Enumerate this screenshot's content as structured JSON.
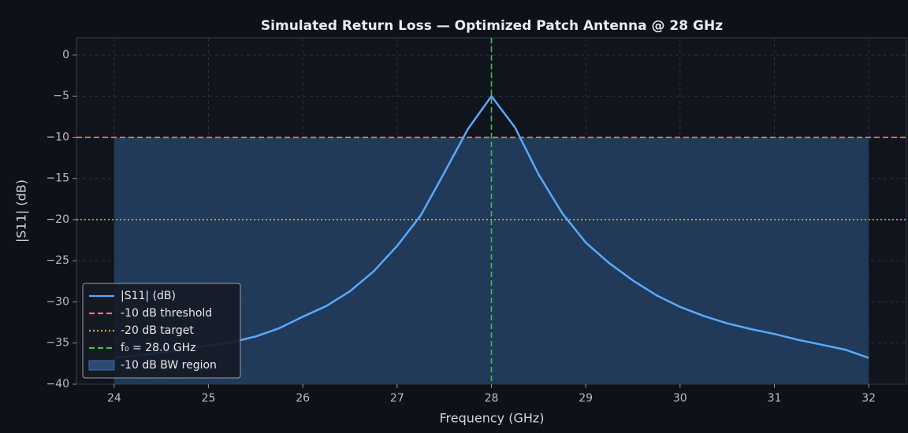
{
  "chart_data": {
    "type": "line",
    "title": "Simulated Return Loss — Optimized Patch Antenna @ 28 GHz",
    "xlabel": "Frequency (GHz)",
    "ylabel": "|S11| (dB)",
    "x": [
      24.0,
      24.25,
      24.5,
      24.75,
      25.0,
      25.25,
      25.5,
      25.75,
      26.0,
      26.25,
      26.5,
      26.75,
      27.0,
      27.25,
      27.5,
      27.75,
      28.0,
      28.25,
      28.5,
      28.75,
      29.0,
      29.25,
      29.5,
      29.75,
      30.0,
      30.25,
      30.5,
      30.75,
      31.0,
      31.25,
      31.5,
      31.75,
      32.0
    ],
    "series": [
      {
        "name": "|S11| (dB)",
        "color": "#5aa9ff",
        "values": [
          -36.8,
          -36.5,
          -36.2,
          -35.8,
          -35.3,
          -34.9,
          -34.2,
          -33.2,
          -31.8,
          -30.5,
          -28.7,
          -26.3,
          -23.2,
          -19.5,
          -14.3,
          -9.0,
          -5.0,
          -8.8,
          -14.5,
          -19.2,
          -22.8,
          -25.3,
          -27.4,
          -29.2,
          -30.6,
          -31.7,
          -32.6,
          -33.3,
          -33.9,
          -34.6,
          -35.2,
          -35.8,
          -36.8
        ]
      }
    ],
    "hlines": [
      {
        "name": "-10 dB threshold",
        "value": -10,
        "color": "#f07070",
        "style": "dashed"
      },
      {
        "name": "-20 dB target",
        "value": -20,
        "color": "#f0a040",
        "style": "dotted"
      }
    ],
    "vlines": [
      {
        "name": "f₀ = 28.0 GHz",
        "value": 28.0,
        "color": "#3cc050",
        "style": "dashed"
      }
    ],
    "fill": {
      "name": "-10 dB BW region",
      "xlim": [
        24,
        32
      ],
      "ylim": [
        -40,
        -10
      ],
      "color": "#2a4a75"
    },
    "xlim": [
      23.6,
      32.4
    ],
    "ylim": [
      -40,
      2.1
    ],
    "xticks": [
      24,
      25,
      26,
      27,
      28,
      29,
      30,
      31,
      32
    ],
    "yticks": [
      0,
      {
        "value": -5,
        "label": "−5"
      },
      {
        "value": -10,
        "label": "−10"
      },
      {
        "value": -15,
        "label": "−15"
      },
      {
        "value": -20,
        "label": "−20"
      },
      {
        "value": -25,
        "label": "−25"
      },
      {
        "value": -30,
        "label": "−30"
      },
      {
        "value": -35,
        "label": "−35"
      },
      {
        "value": -40,
        "label": "−40"
      }
    ],
    "grid": true,
    "legend": "lower left"
  }
}
